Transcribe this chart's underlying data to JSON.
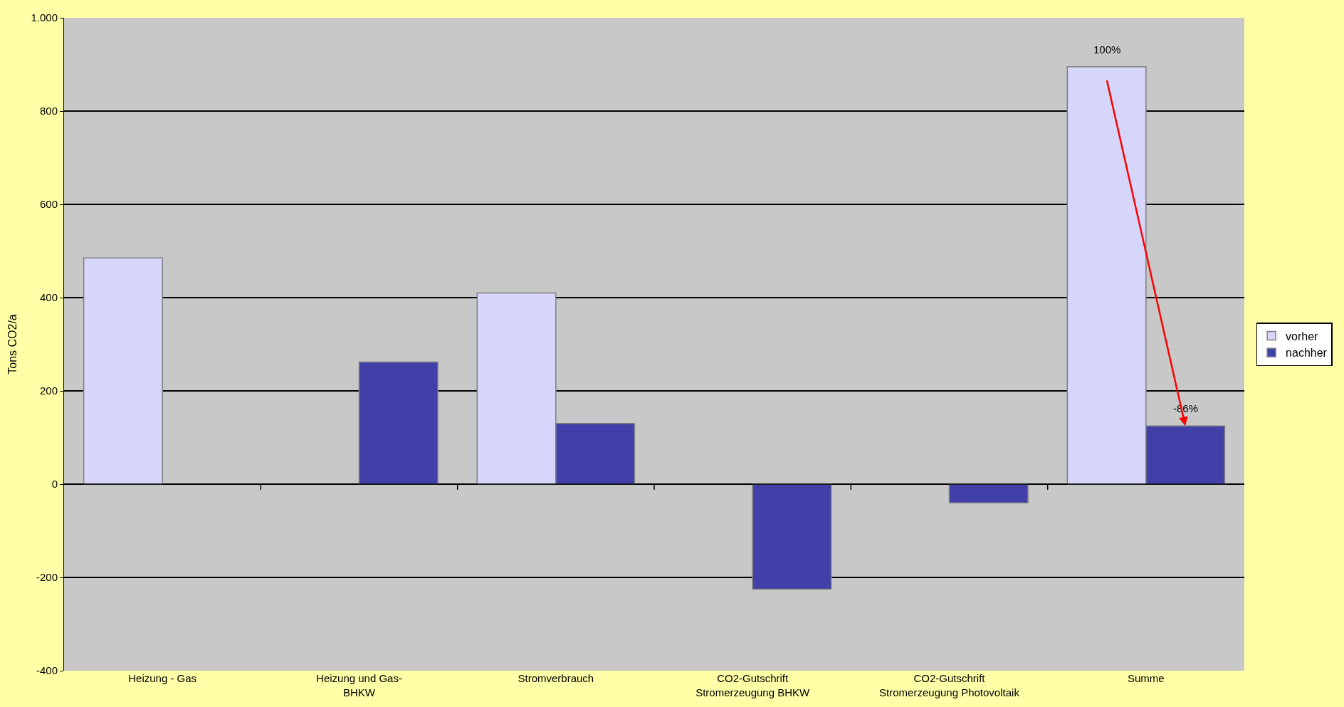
{
  "chart_data": {
    "type": "bar",
    "ylabel": "Tons CO2/a",
    "categories": [
      "Heizung - Gas",
      "Heizung und Gas-BHKW",
      "Stromverbrauch",
      "CO2-Gutschrift Stromerzeugung BHKW",
      "CO2-Gutschrift Stromerzeugung Photovoltaik",
      "Summe"
    ],
    "series": [
      {
        "name": "vorher",
        "color": "#d6d6fa",
        "values": [
          485,
          null,
          410,
          null,
          null,
          895
        ]
      },
      {
        "name": "nachher",
        "color": "#4040a8",
        "values": [
          null,
          262,
          130,
          -225,
          -40,
          125
        ]
      }
    ],
    "ylim": [
      -400,
      1000
    ],
    "yticks": [
      -400,
      -200,
      0,
      200,
      400,
      600,
      800,
      {
        "value": 1000,
        "label": "1.000"
      }
    ],
    "grid": "y",
    "legend": "right",
    "annotations": [
      {
        "text": "100%",
        "x": "Summe",
        "y": 895
      },
      {
        "text": "-86%",
        "x": "Summe",
        "y": 125
      }
    ]
  }
}
